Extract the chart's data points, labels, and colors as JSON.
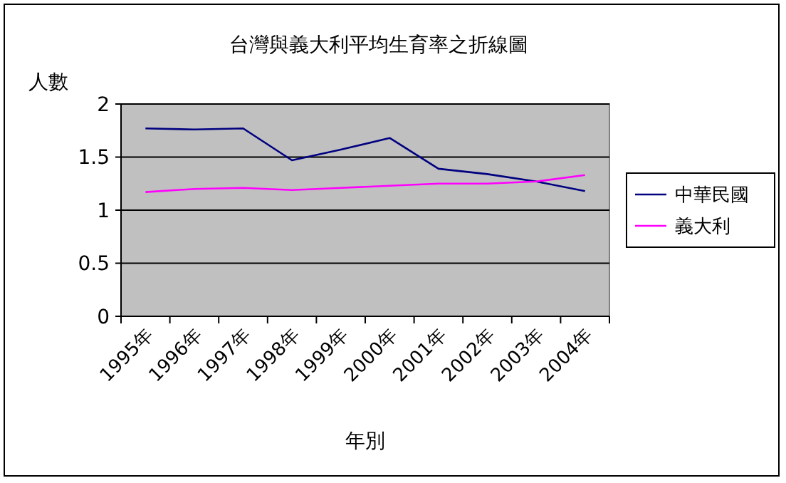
{
  "chart_data": {
    "type": "line",
    "title": "台灣與義大利平均生育率之折線圖",
    "xlabel": "年別",
    "ylabel": "人數",
    "categories": [
      "1995年",
      "1996年",
      "1997年",
      "1998年",
      "1999年",
      "2000年",
      "2001年",
      "2002年",
      "2003年",
      "2004年"
    ],
    "series": [
      {
        "name": "中華民國",
        "color": "#000080",
        "values": [
          1.77,
          1.76,
          1.77,
          1.47,
          1.57,
          1.68,
          1.39,
          1.34,
          1.27,
          1.18
        ]
      },
      {
        "name": "義大利",
        "color": "#ff00ff",
        "values": [
          1.17,
          1.2,
          1.21,
          1.19,
          1.21,
          1.23,
          1.25,
          1.25,
          1.27,
          1.33
        ]
      }
    ],
    "ylim": [
      0,
      2
    ],
    "yticks": [
      0,
      0.5,
      1,
      1.5,
      2
    ],
    "grid": "y",
    "legend": "right",
    "marker": "none",
    "line_style": "solid"
  }
}
